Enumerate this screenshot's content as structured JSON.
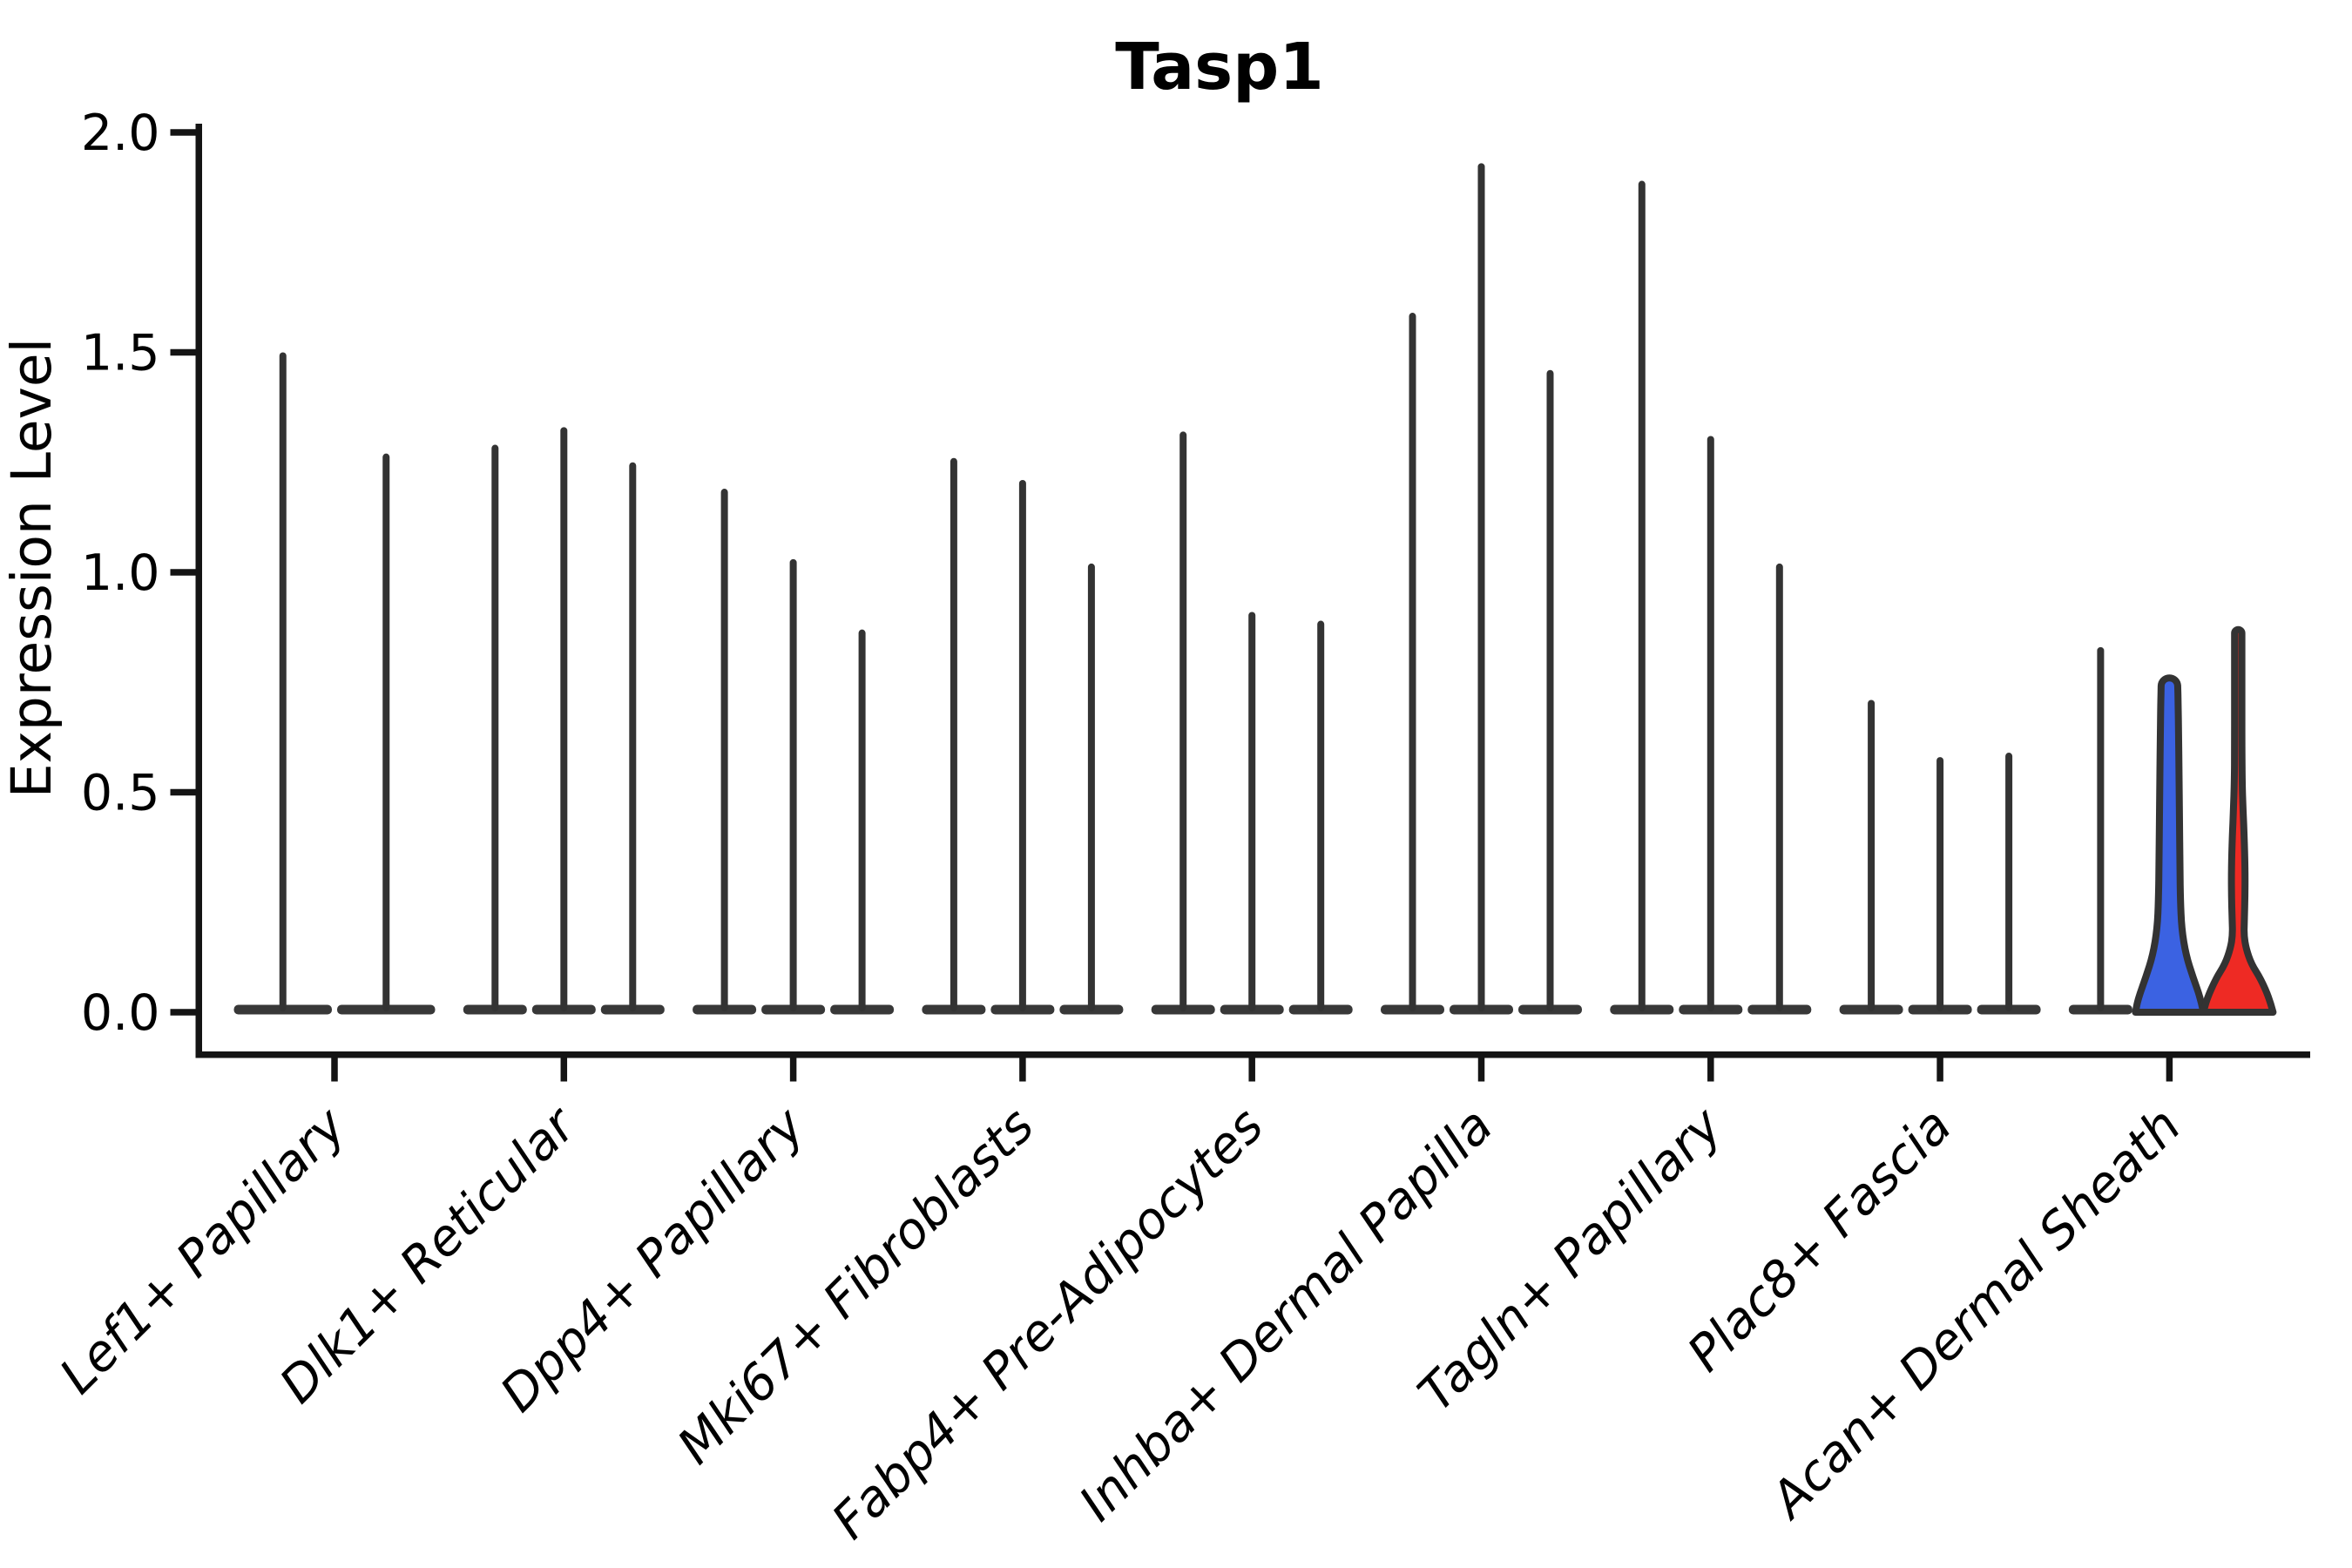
{
  "chart_data": {
    "type": "violin",
    "title": "Tasp1",
    "ylabel": "Expression Level",
    "xlabel": "",
    "ylim": [
      0,
      2
    ],
    "ytick_values": [
      0.0,
      0.5,
      1.0,
      1.5,
      2.0
    ],
    "yticks": [
      "0.0",
      "0.5",
      "1.0",
      "1.5",
      "2.0"
    ],
    "grid": false,
    "legend": "none",
    "x_label_rotation_deg": 45,
    "categories": [
      "Lef1+ Papillary",
      "Dlk1+ Reticular",
      "Dpp4+ Papillary",
      "Mki67+ Fibroblasts",
      "Fabp4+ Pre-Adipocytes",
      "Inhba+ Dermal Papilla",
      "Tagln+ Papillary",
      "Plac8+ Fascia",
      "Acan+ Dermal Sheath"
    ],
    "groups": [
      {
        "category": "Lef1+ Papillary",
        "violins": [
          {
            "max": 1.5,
            "style": "spike"
          },
          {
            "max": 1.27,
            "style": "spike"
          }
        ]
      },
      {
        "category": "Dlk1+ Reticular",
        "violins": [
          {
            "max": 1.29,
            "style": "spike"
          },
          {
            "max": 1.33,
            "style": "spike"
          },
          {
            "max": 1.25,
            "style": "spike"
          }
        ]
      },
      {
        "category": "Dpp4+ Papillary",
        "violins": [
          {
            "max": 1.19,
            "style": "spike"
          },
          {
            "max": 1.03,
            "style": "spike"
          },
          {
            "max": 0.87,
            "style": "spike"
          }
        ]
      },
      {
        "category": "Mki67+ Fibroblasts",
        "violins": [
          {
            "max": 1.26,
            "style": "spike"
          },
          {
            "max": 1.21,
            "style": "spike"
          },
          {
            "max": 1.02,
            "style": "spike"
          }
        ]
      },
      {
        "category": "Fabp4+ Pre-Adipocytes",
        "violins": [
          {
            "max": 1.32,
            "style": "spike"
          },
          {
            "max": 0.91,
            "style": "spike"
          },
          {
            "max": 0.89,
            "style": "spike"
          }
        ]
      },
      {
        "category": "Inhba+ Dermal Papilla",
        "violins": [
          {
            "max": 1.59,
            "style": "spike"
          },
          {
            "max": 1.93,
            "style": "spike"
          },
          {
            "max": 1.46,
            "style": "spike"
          }
        ]
      },
      {
        "category": "Tagln+ Papillary",
        "violins": [
          {
            "max": 1.89,
            "style": "spike"
          },
          {
            "max": 1.31,
            "style": "spike"
          },
          {
            "max": 1.02,
            "style": "spike"
          }
        ]
      },
      {
        "category": "Plac8+ Fascia",
        "violins": [
          {
            "max": 0.71,
            "style": "spike"
          },
          {
            "max": 0.58,
            "style": "spike"
          },
          {
            "max": 0.59,
            "style": "spike"
          }
        ]
      },
      {
        "category": "Acan+ Dermal Sheath",
        "violins": [
          {
            "max": 0.83,
            "style": "spike"
          },
          {
            "max": 0.76,
            "style": "wide",
            "fill": "#3b62e2",
            "profile": "blue_flask"
          },
          {
            "max": 0.87,
            "style": "wide",
            "fill": "#ee2a24",
            "profile": "red_trumpet"
          }
        ]
      }
    ],
    "profiles": {
      "blue_flask": [
        [
          0.0,
          39
        ],
        [
          0.03,
          36
        ],
        [
          0.08,
          27
        ],
        [
          0.13,
          19
        ],
        [
          0.19,
          14
        ],
        [
          0.26,
          12.5
        ],
        [
          0.34,
          12
        ],
        [
          0.44,
          11.5
        ],
        [
          0.54,
          11
        ],
        [
          0.63,
          10.5
        ],
        [
          0.7,
          10
        ],
        [
          0.745,
          9.5
        ]
      ],
      "red_trumpet": [
        [
          0.0,
          40
        ],
        [
          0.03,
          36
        ],
        [
          0.075,
          26
        ],
        [
          0.11,
          15
        ],
        [
          0.145,
          9
        ],
        [
          0.175,
          6.5
        ],
        [
          0.21,
          7
        ],
        [
          0.27,
          7.8
        ],
        [
          0.33,
          7.8
        ],
        [
          0.4,
          6.8
        ],
        [
          0.46,
          5.5
        ],
        [
          0.52,
          4.5
        ],
        [
          0.6,
          4.2
        ],
        [
          0.72,
          4.2
        ],
        [
          0.84,
          4.2
        ]
      ]
    },
    "colors": {
      "violin_line": "#333333",
      "violin_base": "#383838",
      "axis": "#141414",
      "text": "#000000",
      "split_blue": "#3b62e2",
      "split_red": "#ee2a24",
      "background": "#ffffff"
    }
  }
}
